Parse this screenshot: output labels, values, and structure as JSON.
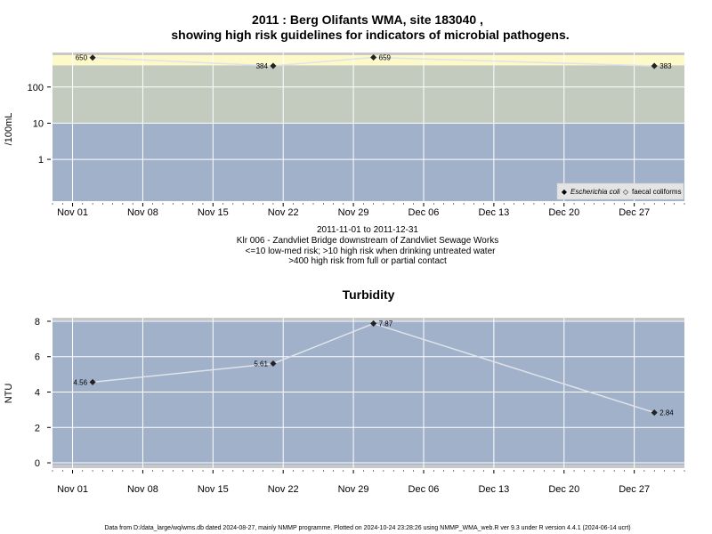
{
  "page": {
    "title_line1": "2011 : Berg Olifants WMA, site 183040 ,",
    "title_line2": "showing high risk guidelines for indicators of microbial pathogens.",
    "caption_lines": [
      "2011-11-01 to 2011-12-31",
      "Klr 006 - Zandvliet Bridge downstream of Zandvliet Sewage Works",
      "<=10 low-med risk; >10 high risk when drinking untreated water",
      ">400 high risk from full or partial contact"
    ],
    "footer": "Data from D:/data_large/wq/wms.db dated 2024-08-27, mainly NMMP programme. Plotted on 2024-10-24 23:28:26 using NMMP_WMA_web.R ver 9.3 under R version 4.4.1 (2024-06-14 ucrt)"
  },
  "chart_data": [
    {
      "type": "line",
      "title": "",
      "ylabel": "/100mL",
      "yscale": "log",
      "yticks": [
        "1",
        "10",
        "100"
      ],
      "xticks": [
        "Nov 01",
        "Nov 08",
        "Nov 15",
        "Nov 22",
        "Nov 29",
        "Dec 06",
        "Dec 13",
        "Dec 20",
        "Dec 27"
      ],
      "risk_bands": [
        {
          "label": "low-med risk",
          "range": [
            0.07,
            10
          ],
          "color": "#a1b1ca"
        },
        {
          "label": "high risk untreated drinking",
          "range": [
            10,
            400
          ],
          "color": "#c2cbbe"
        },
        {
          "label": "high risk contact",
          "range": [
            400,
            900
          ],
          "color": "#fdf9c9"
        }
      ],
      "series": [
        {
          "name": "Escherichia coli",
          "x": [
            "2011-11-03",
            "2011-11-21",
            "2011-12-01",
            "2011-12-29"
          ],
          "values": [
            650,
            384,
            659,
            383
          ],
          "labels": [
            "650",
            "384",
            "659",
            "383"
          ]
        }
      ],
      "legend": {
        "position": "bottom-right",
        "items": [
          "Escherichia coli",
          "faecal coliforms"
        ]
      },
      "grid": true
    },
    {
      "type": "line",
      "title": "Turbidity",
      "ylabel": "NTU",
      "ylim": [
        0,
        8
      ],
      "yticks": [
        "0",
        "2",
        "4",
        "6",
        "8"
      ],
      "xticks": [
        "Nov 01",
        "Nov 08",
        "Nov 15",
        "Nov 22",
        "Nov 29",
        "Dec 06",
        "Dec 13",
        "Dec 20",
        "Dec 27"
      ],
      "series": [
        {
          "name": "",
          "x": [
            "2011-11-03",
            "2011-11-21",
            "2011-12-01",
            "2011-12-29"
          ],
          "values": [
            4.56,
            5.61,
            7.87,
            2.84
          ],
          "labels": [
            "4.56",
            "5.61",
            "7.87",
            "2.84"
          ]
        }
      ],
      "grid": true
    }
  ]
}
